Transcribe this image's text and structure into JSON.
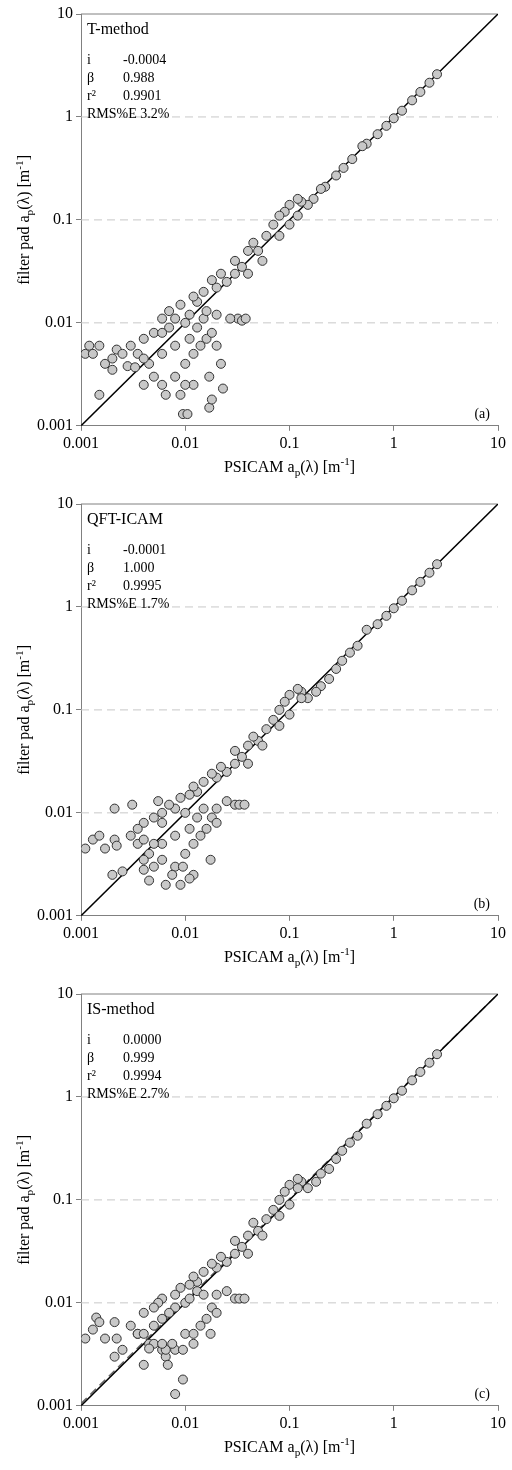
{
  "chart_data": [
    {
      "type": "scatter",
      "xlabel": "PSICAM a$_{p}$(λ) [m$^{-1}$]",
      "ylabel": "filter pad a$_{p}$(λ) [m$^{-1}$]",
      "log": "xy",
      "xlim": [
        0.001,
        10
      ],
      "ylim": [
        0.001,
        10
      ],
      "xticks": [
        0.001,
        0.01,
        0.1,
        1,
        10
      ],
      "yticks": [
        0.001,
        0.01,
        0.1,
        1,
        10
      ],
      "grid": "y",
      "annotations": [
        "T-method",
        "i -0.0004",
        "β 0.988",
        "r² 0.9901",
        "RMS%E 3.2%",
        "(a)"
      ],
      "series": [
        {
          "marker": "circle",
          "color": "#c8c8c8",
          "x": [
            2.6,
            2.2,
            1.8,
            1.5,
            1.2,
            1.0,
            0.85,
            0.7,
            0.55,
            0.5,
            0.4,
            0.33,
            0.28,
            0.22,
            0.2,
            0.17,
            0.15,
            0.13,
            0.12,
            0.1,
            0.09,
            0.08,
            0.07,
            0.06,
            0.1,
            0.12,
            0.08,
            0.05,
            0.045,
            0.04,
            0.035,
            0.03,
            0.04,
            0.055,
            0.03,
            0.025,
            0.02,
            0.022,
            0.018,
            0.015,
            0.013,
            0.011,
            0.012,
            0.009,
            0.01,
            0.032,
            0.035,
            0.038,
            0.027,
            0.02,
            0.008,
            0.006,
            0.007,
            0.005,
            0.004,
            0.003,
            0.0035,
            0.0045,
            0.005,
            0.006,
            0.008,
            0.01,
            0.012,
            0.014,
            0.016,
            0.018,
            0.02,
            0.022,
            0.017,
            0.012,
            0.009,
            0.0095,
            0.0105,
            0.017,
            0.018,
            0.023,
            0.0065,
            0.0015,
            0.0011,
            0.0012,
            0.0015,
            0.0013,
            0.0017,
            0.002,
            0.002,
            0.0022,
            0.0025,
            0.0028,
            0.0033,
            0.004,
            0.006,
            0.008,
            0.011,
            0.013,
            0.015,
            0.016,
            0.007,
            0.006,
            0.004,
            0.01
          ],
          "values": [
            2.6,
            2.15,
            1.75,
            1.45,
            1.15,
            0.97,
            0.82,
            0.68,
            0.55,
            0.52,
            0.39,
            0.32,
            0.27,
            0.21,
            0.2,
            0.16,
            0.14,
            0.15,
            0.16,
            0.14,
            0.12,
            0.11,
            0.09,
            0.07,
            0.09,
            0.11,
            0.07,
            0.05,
            0.06,
            0.05,
            0.035,
            0.03,
            0.03,
            0.04,
            0.04,
            0.025,
            0.022,
            0.03,
            0.026,
            0.02,
            0.016,
            0.012,
            0.018,
            0.015,
            0.01,
            0.011,
            0.0105,
            0.011,
            0.011,
            0.012,
            0.011,
            0.011,
            0.009,
            0.008,
            0.007,
            0.006,
            0.005,
            0.004,
            0.003,
            0.0025,
            0.003,
            0.004,
            0.005,
            0.006,
            0.007,
            0.008,
            0.006,
            0.004,
            0.003,
            0.0025,
            0.002,
            0.0013,
            0.0013,
            0.0015,
            0.0018,
            0.0023,
            0.002,
            0.002,
            0.005,
            0.006,
            0.006,
            0.005,
            0.004,
            0.0045,
            0.0035,
            0.0055,
            0.005,
            0.0038,
            0.0037,
            0.0045,
            0.005,
            0.006,
            0.007,
            0.009,
            0.011,
            0.013,
            0.013,
            0.008,
            0.0025,
            0.0025
          ]
        },
        {
          "type": "line",
          "color": "#000000",
          "x": [
            0.001,
            10
          ],
          "values": [
            0.001,
            10
          ]
        }
      ]
    },
    {
      "type": "scatter",
      "xlabel": "PSICAM a$_{p}$(λ) [m$^{-1}$]",
      "ylabel": "filter pad a$_{p}$(λ) [m$^{-1}$]",
      "log": "xy",
      "xlim": [
        0.001,
        10
      ],
      "ylim": [
        0.001,
        10
      ],
      "xticks": [
        0.001,
        0.01,
        0.1,
        1,
        10
      ],
      "yticks": [
        0.001,
        0.01,
        0.1,
        1,
        10
      ],
      "grid": "y",
      "annotations": [
        "QFT-ICAM",
        "i -0.0001",
        "β 1.000",
        "r² 0.9995",
        "RMS%E 1.7%",
        "(b)"
      ],
      "series": [
        {
          "marker": "circle",
          "color": "#c8c8c8",
          "x": [
            2.6,
            2.2,
            1.8,
            1.5,
            1.2,
            1.0,
            0.85,
            0.7,
            0.55,
            0.45,
            0.38,
            0.32,
            0.28,
            0.24,
            0.2,
            0.18,
            0.15,
            0.13,
            0.12,
            0.1,
            0.09,
            0.08,
            0.07,
            0.06,
            0.1,
            0.13,
            0.08,
            0.05,
            0.045,
            0.04,
            0.035,
            0.03,
            0.04,
            0.055,
            0.03,
            0.025,
            0.02,
            0.022,
            0.018,
            0.015,
            0.013,
            0.011,
            0.012,
            0.009,
            0.01,
            0.03,
            0.033,
            0.037,
            0.025,
            0.02,
            0.008,
            0.006,
            0.0055,
            0.005,
            0.004,
            0.003,
            0.0035,
            0.0045,
            0.005,
            0.006,
            0.008,
            0.01,
            0.012,
            0.014,
            0.016,
            0.018,
            0.02,
            0.0175,
            0.012,
            0.009,
            0.0075,
            0.0095,
            0.011,
            0.0045,
            0.004,
            0.0065,
            0.0021,
            0.0031,
            0.0011,
            0.0013,
            0.0015,
            0.0017,
            0.0021,
            0.0022,
            0.002,
            0.0025,
            0.0035,
            0.004,
            0.006,
            0.008,
            0.011,
            0.013,
            0.015,
            0.007,
            0.006,
            0.004,
            0.005
          ],
          "values": [
            2.6,
            2.15,
            1.75,
            1.45,
            1.15,
            0.97,
            0.82,
            0.68,
            0.6,
            0.42,
            0.36,
            0.3,
            0.25,
            0.2,
            0.17,
            0.15,
            0.13,
            0.15,
            0.16,
            0.14,
            0.12,
            0.1,
            0.08,
            0.065,
            0.09,
            0.13,
            0.07,
            0.05,
            0.055,
            0.045,
            0.035,
            0.03,
            0.03,
            0.045,
            0.04,
            0.025,
            0.022,
            0.028,
            0.024,
            0.02,
            0.016,
            0.015,
            0.018,
            0.014,
            0.01,
            0.012,
            0.012,
            0.012,
            0.013,
            0.011,
            0.011,
            0.01,
            0.013,
            0.009,
            0.008,
            0.006,
            0.005,
            0.004,
            0.003,
            0.0035,
            0.003,
            0.004,
            0.005,
            0.006,
            0.007,
            0.009,
            0.008,
            0.0035,
            0.0025,
            0.002,
            0.0025,
            0.003,
            0.0023,
            0.0022,
            0.0028,
            0.002,
            0.011,
            0.012,
            0.0045,
            0.0055,
            0.006,
            0.0045,
            0.0055,
            0.0048,
            0.0025,
            0.0027,
            0.007,
            0.0055,
            0.005,
            0.006,
            0.007,
            0.009,
            0.011,
            0.012,
            0.008,
            0.0035,
            0.005
          ]
        },
        {
          "type": "line",
          "color": "#000000",
          "x": [
            0.001,
            10
          ],
          "values": [
            0.001,
            10
          ]
        }
      ]
    },
    {
      "type": "scatter",
      "xlabel": "PSICAM a$_{p}$(λ) [m$^{-1}$]",
      "ylabel": "filter pad a$_{p}$(λ) [m$^{-1}$]",
      "log": "xy",
      "xlim": [
        0.001,
        10
      ],
      "ylim": [
        0.001,
        10
      ],
      "xticks": [
        0.001,
        0.01,
        0.1,
        1,
        10
      ],
      "yticks": [
        0.001,
        0.01,
        0.1,
        1,
        10
      ],
      "grid": "y",
      "annotations": [
        "IS-method",
        "i 0.0000",
        "β 0.999",
        "r² 0.9994",
        "RMS%E 2.7%",
        "(c)"
      ],
      "series": [
        {
          "marker": "circle",
          "color": "#c8c8c8",
          "x": [
            2.6,
            2.2,
            1.8,
            1.5,
            1.2,
            1.0,
            0.85,
            0.7,
            0.55,
            0.45,
            0.38,
            0.32,
            0.28,
            0.24,
            0.2,
            0.18,
            0.15,
            0.13,
            0.12,
            0.1,
            0.09,
            0.08,
            0.07,
            0.06,
            0.1,
            0.12,
            0.08,
            0.05,
            0.045,
            0.04,
            0.035,
            0.03,
            0.04,
            0.055,
            0.03,
            0.025,
            0.02,
            0.022,
            0.018,
            0.015,
            0.013,
            0.011,
            0.012,
            0.009,
            0.01,
            0.03,
            0.033,
            0.037,
            0.025,
            0.02,
            0.008,
            0.006,
            0.0055,
            0.005,
            0.004,
            0.003,
            0.0035,
            0.0045,
            0.005,
            0.006,
            0.008,
            0.01,
            0.012,
            0.014,
            0.016,
            0.018,
            0.02,
            0.0175,
            0.012,
            0.0095,
            0.0075,
            0.0065,
            0.0068,
            0.0045,
            0.004,
            0.0065,
            0.008,
            0.0095,
            0.0011,
            0.0013,
            0.0014,
            0.0015,
            0.0017,
            0.0021,
            0.0021,
            0.0022,
            0.0025,
            0.0035,
            0.006,
            0.008,
            0.011,
            0.013,
            0.015,
            0.007,
            0.006,
            0.004,
            0.005
          ],
          "values": [
            2.6,
            2.15,
            1.75,
            1.45,
            1.15,
            0.97,
            0.82,
            0.68,
            0.55,
            0.42,
            0.36,
            0.3,
            0.25,
            0.2,
            0.18,
            0.15,
            0.13,
            0.15,
            0.16,
            0.14,
            0.12,
            0.1,
            0.08,
            0.065,
            0.09,
            0.13,
            0.07,
            0.05,
            0.06,
            0.045,
            0.035,
            0.03,
            0.03,
            0.045,
            0.04,
            0.025,
            0.022,
            0.028,
            0.024,
            0.02,
            0.016,
            0.015,
            0.018,
            0.014,
            0.01,
            0.011,
            0.011,
            0.011,
            0.013,
            0.012,
            0.012,
            0.011,
            0.01,
            0.009,
            0.008,
            0.006,
            0.005,
            0.004,
            0.004,
            0.0035,
            0.0035,
            0.005,
            0.005,
            0.006,
            0.007,
            0.009,
            0.008,
            0.005,
            0.004,
            0.0035,
            0.004,
            0.003,
            0.0025,
            0.0036,
            0.0025,
            0.0035,
            0.0013,
            0.0018,
            0.0045,
            0.0055,
            0.0072,
            0.0065,
            0.0045,
            0.0065,
            0.003,
            0.0045,
            0.0035,
            0.005,
            0.007,
            0.009,
            0.011,
            0.013,
            0.012,
            0.008,
            0.004,
            0.005,
            0.006
          ]
        },
        {
          "type": "line",
          "color": "#000000",
          "x": [
            0.001,
            10
          ],
          "values": [
            0.001,
            10
          ]
        },
        {
          "type": "line",
          "color": "#666666",
          "line_style": "dashed",
          "x": [
            0.001,
            10
          ],
          "values": [
            0.00105,
            10
          ]
        }
      ]
    }
  ]
}
